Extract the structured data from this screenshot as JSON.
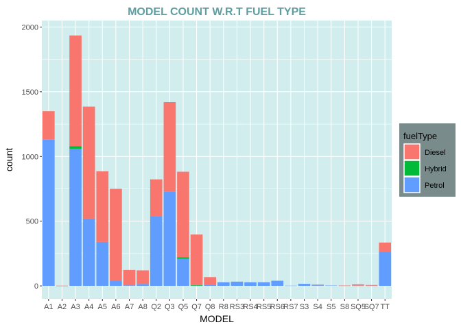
{
  "chart_data": {
    "type": "bar",
    "stacked": true,
    "title": "MODEL COUNT W.R.T  FUEL TYPE",
    "xlabel": "MODEL",
    "ylabel": "count",
    "ylim": [
      -100,
      2050
    ],
    "yticks": [
      0,
      500,
      1000,
      1500,
      2000
    ],
    "grid": true,
    "legend_placement": "right",
    "legend_title": "fuelType",
    "categories": [
      "A1",
      "A2",
      "A3",
      "A4",
      "A5",
      "A6",
      "A7",
      "A8",
      "Q2",
      "Q3",
      "Q5",
      "Q7",
      "Q8",
      "R8",
      "RS3",
      "RS4",
      "RS5",
      "RS6",
      "RS7",
      "S3",
      "S4",
      "S5",
      "S8",
      "SQ5",
      "SQ7",
      "TT"
    ],
    "series": [
      {
        "name": "Petrol",
        "color": "#619CFF",
        "values": [
          1130,
          1,
          1060,
          520,
          340,
          40,
          5,
          15,
          540,
          730,
          210,
          2,
          8,
          28,
          33,
          28,
          28,
          40,
          2,
          16,
          5,
          3,
          2,
          2,
          2,
          260
        ]
      },
      {
        "name": "Hybrid",
        "color": "#00BA38",
        "values": [
          0,
          0,
          20,
          0,
          0,
          0,
          0,
          0,
          0,
          0,
          12,
          5,
          0,
          0,
          0,
          0,
          0,
          0,
          0,
          0,
          0,
          0,
          0,
          0,
          0,
          0
        ]
      },
      {
        "name": "Diesel",
        "color": "#F8766D",
        "values": [
          220,
          1,
          855,
          865,
          545,
          710,
          118,
          105,
          283,
          690,
          660,
          390,
          60,
          0,
          0,
          0,
          0,
          0,
          0,
          0,
          5,
          0,
          1,
          10,
          5,
          75
        ]
      }
    ],
    "legend_order": [
      "Diesel",
      "Hybrid",
      "Petrol"
    ],
    "colors": {
      "panel": "#D1EDEE",
      "grid": "#FFFFFF",
      "title": "#5F9EA0",
      "legend_bg": "#7A8B8B"
    }
  }
}
